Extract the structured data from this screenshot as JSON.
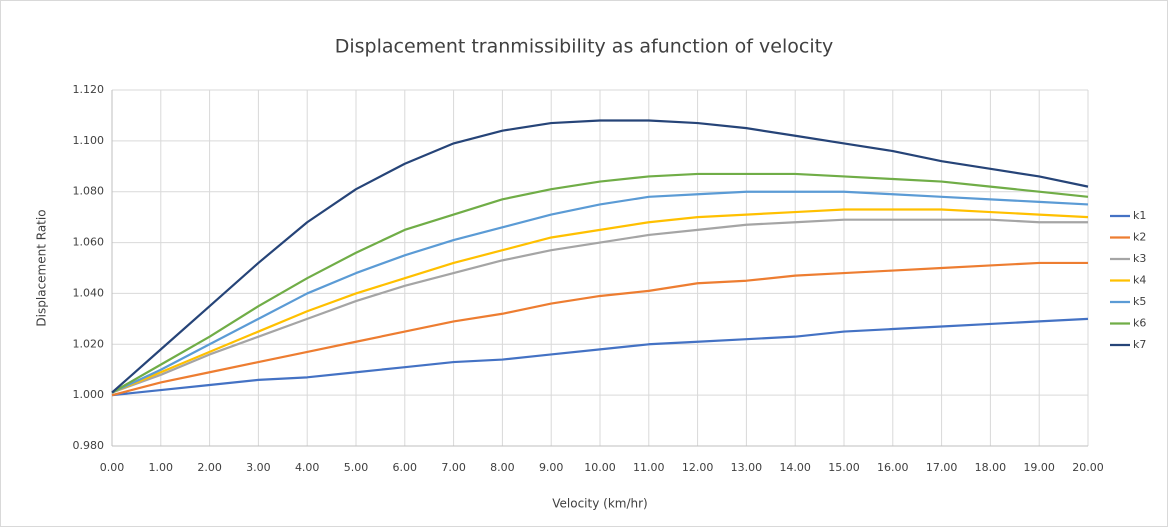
{
  "chart_data": {
    "type": "line",
    "title": "Displacement tranmissibility as afunction of velocity",
    "x_label": "Velocity (km/hr)",
    "y_label": "Displacement Ratio",
    "x": [
      0,
      1,
      2,
      3,
      4,
      5,
      6,
      7,
      8,
      9,
      10,
      11,
      12,
      13,
      14,
      15,
      16,
      17,
      18,
      19,
      20
    ],
    "xlim": [
      0,
      20
    ],
    "xticks": [
      {
        "value": 0,
        "label": "0.00"
      },
      {
        "value": 1,
        "label": "1.00"
      },
      {
        "value": 2,
        "label": "2.00"
      },
      {
        "value": 3,
        "label": "3.00"
      },
      {
        "value": 4,
        "label": "4.00"
      },
      {
        "value": 5,
        "label": "5.00"
      },
      {
        "value": 6,
        "label": "6.00"
      },
      {
        "value": 7,
        "label": "7.00"
      },
      {
        "value": 8,
        "label": "8.00"
      },
      {
        "value": 9,
        "label": "9.00"
      },
      {
        "value": 10,
        "label": "10.00"
      },
      {
        "value": 11,
        "label": "11.00"
      },
      {
        "value": 12,
        "label": "12.00"
      },
      {
        "value": 13,
        "label": "13.00"
      },
      {
        "value": 14,
        "label": "14.00"
      },
      {
        "value": 15,
        "label": "15.00"
      },
      {
        "value": 16,
        "label": "16.00"
      },
      {
        "value": 17,
        "label": "17.00"
      },
      {
        "value": 18,
        "label": "18.00"
      },
      {
        "value": 19,
        "label": "19.00"
      },
      {
        "value": 20,
        "label": "20.00"
      }
    ],
    "ylim": [
      0.98,
      1.12
    ],
    "yticks": [
      {
        "value": 0.98,
        "label": "0.980"
      },
      {
        "value": 1.0,
        "label": "1.000"
      },
      {
        "value": 1.02,
        "label": "1.020"
      },
      {
        "value": 1.04,
        "label": "1.040"
      },
      {
        "value": 1.06,
        "label": "1.060"
      },
      {
        "value": 1.08,
        "label": "1.080"
      },
      {
        "value": 1.1,
        "label": "1.100"
      },
      {
        "value": 1.12,
        "label": "1.120"
      }
    ],
    "grid": true,
    "legend": "right",
    "series": [
      {
        "name": "k1",
        "color": "#4472c4",
        "values": [
          1.0,
          1.002,
          1.004,
          1.006,
          1.007,
          1.009,
          1.011,
          1.013,
          1.014,
          1.016,
          1.018,
          1.02,
          1.021,
          1.022,
          1.023,
          1.025,
          1.026,
          1.027,
          1.028,
          1.029,
          1.03
        ]
      },
      {
        "name": "k2",
        "color": "#ed7d31",
        "values": [
          1.0,
          1.005,
          1.009,
          1.013,
          1.017,
          1.021,
          1.025,
          1.029,
          1.032,
          1.036,
          1.039,
          1.041,
          1.044,
          1.045,
          1.047,
          1.048,
          1.049,
          1.05,
          1.051,
          1.052,
          1.052
        ]
      },
      {
        "name": "k3",
        "color": "#a5a5a5",
        "values": [
          1.001,
          1.008,
          1.016,
          1.023,
          1.03,
          1.037,
          1.043,
          1.048,
          1.053,
          1.057,
          1.06,
          1.063,
          1.065,
          1.067,
          1.068,
          1.069,
          1.069,
          1.069,
          1.069,
          1.068,
          1.068
        ]
      },
      {
        "name": "k4",
        "color": "#ffc000",
        "values": [
          1.001,
          1.009,
          1.017,
          1.025,
          1.033,
          1.04,
          1.046,
          1.052,
          1.057,
          1.062,
          1.065,
          1.068,
          1.07,
          1.071,
          1.072,
          1.073,
          1.073,
          1.073,
          1.072,
          1.071,
          1.07
        ]
      },
      {
        "name": "k5",
        "color": "#5b9bd5",
        "values": [
          1.001,
          1.01,
          1.02,
          1.03,
          1.04,
          1.048,
          1.055,
          1.061,
          1.066,
          1.071,
          1.075,
          1.078,
          1.079,
          1.08,
          1.08,
          1.08,
          1.079,
          1.078,
          1.077,
          1.076,
          1.075
        ]
      },
      {
        "name": "k6",
        "color": "#70ad47",
        "values": [
          1.001,
          1.012,
          1.023,
          1.035,
          1.046,
          1.056,
          1.065,
          1.071,
          1.077,
          1.081,
          1.084,
          1.086,
          1.087,
          1.087,
          1.087,
          1.086,
          1.085,
          1.084,
          1.082,
          1.08,
          1.078
        ]
      },
      {
        "name": "k7",
        "color": "#264478",
        "values": [
          1.001,
          1.018,
          1.035,
          1.052,
          1.068,
          1.081,
          1.091,
          1.099,
          1.104,
          1.107,
          1.108,
          1.108,
          1.107,
          1.105,
          1.102,
          1.099,
          1.096,
          1.092,
          1.089,
          1.086,
          1.082
        ]
      }
    ]
  }
}
